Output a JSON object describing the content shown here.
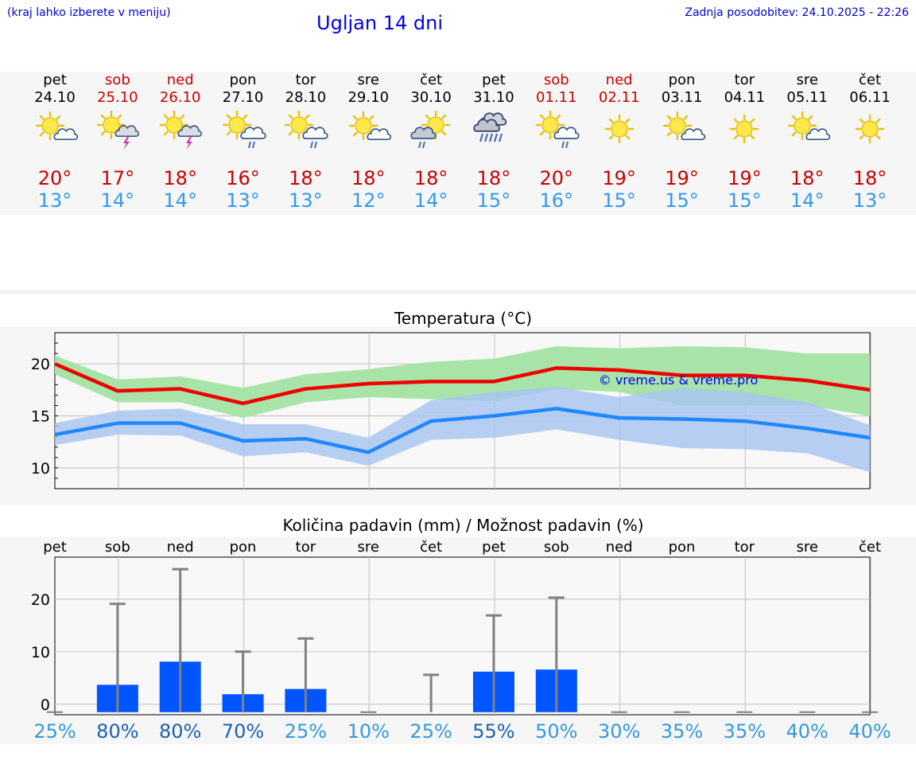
{
  "header": {
    "hint": "(kraj lahko izberete v meniju)",
    "title": "Ugljan 14 dni",
    "updated": "Zadnja posodobitev: 24.10.2025 - 22:26"
  },
  "days": [
    {
      "name": "pet",
      "date": "24.10",
      "max": "20°",
      "min": "13°",
      "icon": "sun-cloud",
      "weekend": false
    },
    {
      "name": "sob",
      "date": "25.10",
      "max": "17°",
      "min": "14°",
      "icon": "sun-thunder",
      "weekend": true
    },
    {
      "name": "ned",
      "date": "26.10",
      "max": "18°",
      "min": "14°",
      "icon": "sun-thunder",
      "weekend": true
    },
    {
      "name": "pon",
      "date": "27.10",
      "max": "16°",
      "min": "13°",
      "icon": "sun-cloud-rain",
      "weekend": false
    },
    {
      "name": "tor",
      "date": "28.10",
      "max": "18°",
      "min": "13°",
      "icon": "sun-cloud-rain",
      "weekend": false
    },
    {
      "name": "sre",
      "date": "29.10",
      "max": "18°",
      "min": "12°",
      "icon": "sun-cloud",
      "weekend": false
    },
    {
      "name": "čet",
      "date": "30.10",
      "max": "18°",
      "min": "14°",
      "icon": "sun-cloud-rain-grey",
      "weekend": false
    },
    {
      "name": "pet",
      "date": "31.10",
      "max": "18°",
      "min": "15°",
      "icon": "cloud-heavy-rain",
      "weekend": false
    },
    {
      "name": "sob",
      "date": "01.11",
      "max": "20°",
      "min": "16°",
      "icon": "sun-cloud-rain",
      "weekend": true
    },
    {
      "name": "ned",
      "date": "02.11",
      "max": "19°",
      "min": "15°",
      "icon": "sun",
      "weekend": true
    },
    {
      "name": "pon",
      "date": "03.11",
      "max": "19°",
      "min": "15°",
      "icon": "sun-cloud",
      "weekend": false
    },
    {
      "name": "tor",
      "date": "04.11",
      "max": "19°",
      "min": "15°",
      "icon": "sun",
      "weekend": false
    },
    {
      "name": "sre",
      "date": "05.11",
      "max": "18°",
      "min": "14°",
      "icon": "sun-cloud",
      "weekend": false
    },
    {
      "name": "čet",
      "date": "06.11",
      "max": "18°",
      "min": "13°",
      "icon": "sun",
      "weekend": false
    }
  ],
  "colors": {
    "tmax_line": "#ee0000",
    "tmax_band": "#a8e4a8",
    "tmin_line": "#2288ff",
    "tmin_band": "#a8c4f2",
    "precip_bar": "#0055ff",
    "weekend": "#cc0000",
    "prob_low": "#3399dd",
    "prob_high": "#1a5fb4"
  },
  "chart_data": [
    {
      "type": "line",
      "title": "Temperatura (°C)",
      "watermark": "© vreme.us & vreme.pro",
      "ylim": [
        8,
        23
      ],
      "yticks": [
        10,
        15,
        20
      ],
      "grid": true,
      "categories": [
        "pet",
        "sob",
        "ned",
        "pon",
        "tor",
        "sre",
        "čet",
        "pet",
        "sob",
        "ned",
        "pon",
        "tor",
        "sre",
        "čet"
      ],
      "series": [
        {
          "values": [
            20.0,
            17.4,
            17.6,
            16.2,
            17.6,
            18.1,
            18.3,
            18.3,
            19.6,
            19.4,
            18.9,
            18.9,
            18.4,
            17.5
          ],
          "band_low": [
            19.0,
            16.3,
            16.3,
            14.8,
            16.3,
            16.8,
            16.6,
            16.4,
            17.6,
            17.3,
            16.0,
            16.0,
            16.0,
            15.0
          ],
          "band_high": [
            20.8,
            18.5,
            18.8,
            17.7,
            19.0,
            19.5,
            20.2,
            20.5,
            21.7,
            21.5,
            21.7,
            21.6,
            21.0,
            21.0
          ]
        },
        {
          "values": [
            13.2,
            14.3,
            14.3,
            12.6,
            12.8,
            11.5,
            14.5,
            15.0,
            15.7,
            14.8,
            14.7,
            14.5,
            13.8,
            12.9
          ],
          "band_low": [
            12.2,
            13.2,
            13.1,
            11.1,
            11.5,
            10.2,
            12.7,
            12.9,
            13.7,
            12.7,
            11.9,
            11.8,
            11.4,
            9.6
          ],
          "band_high": [
            14.3,
            15.5,
            15.7,
            14.2,
            14.2,
            12.9,
            16.5,
            17.3,
            17.8,
            16.8,
            17.7,
            17.3,
            16.3,
            14.1
          ]
        }
      ]
    },
    {
      "type": "bar",
      "title": "Količina padavin (mm) / Možnost padavin (%)",
      "ylim": [
        -2,
        28
      ],
      "yticks": [
        0,
        10,
        20
      ],
      "grid": true,
      "categories": [
        "pet",
        "sob",
        "ned",
        "pon",
        "tor",
        "sre",
        "čet",
        "pet",
        "sob",
        "ned",
        "pon",
        "tor",
        "sre",
        "čet"
      ],
      "values": [
        0,
        3.7,
        8.1,
        1.9,
        2.9,
        0,
        0,
        6.2,
        6.6,
        0,
        0,
        0,
        0,
        0
      ],
      "error_high": [
        0,
        19.1,
        25.7,
        10.0,
        12.5,
        0,
        5.6,
        16.9,
        20.3,
        0,
        0,
        0,
        0,
        0
      ],
      "probability": [
        "25%",
        "80%",
        "80%",
        "70%",
        "25%",
        "10%",
        "25%",
        "55%",
        "50%",
        "30%",
        "35%",
        "35%",
        "40%",
        "40%"
      ],
      "probability_values": [
        25,
        80,
        80,
        70,
        25,
        10,
        25,
        55,
        50,
        30,
        35,
        35,
        40,
        40
      ]
    }
  ]
}
